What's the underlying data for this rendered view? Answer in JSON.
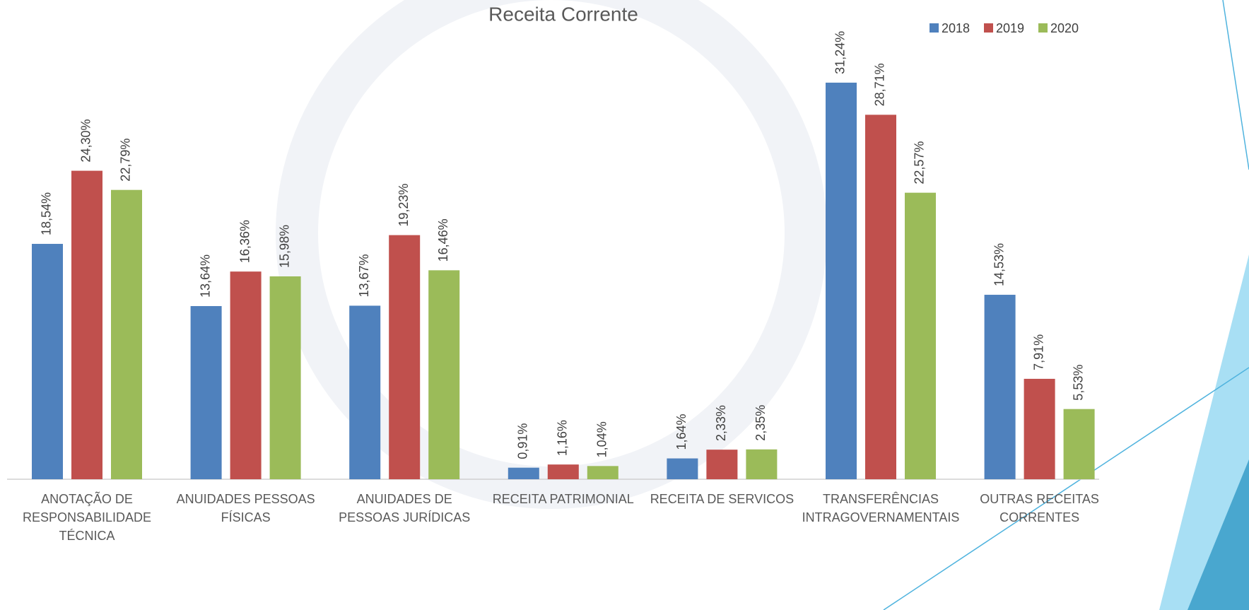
{
  "chart_data": {
    "type": "bar",
    "title": "Receita Corrente",
    "categories": [
      "ANOTAÇÃO DE RESPONSABILIDADE TÉCNICA",
      "ANUIDADES PESSOAS FÍSICAS",
      "ANUIDADES DE PESSOAS JURÍDICAS",
      "RECEITA PATRIMONIAL",
      "RECEITA DE SERVICOS",
      "TRANSFERÊNCIAS INTRAGOVERNAMENTAIS",
      "OUTRAS RECEITAS CORRENTES"
    ],
    "series": [
      {
        "name": "2018",
        "color": "#4f81bd",
        "values": [
          18.54,
          13.64,
          13.67,
          0.91,
          1.64,
          31.24,
          14.53
        ],
        "value_labels": [
          "18,54%",
          "13,64%",
          "13,67%",
          "0,91%",
          "1,64%",
          "31,24%",
          "14,53%"
        ]
      },
      {
        "name": "2019",
        "color": "#c0504d",
        "values": [
          24.3,
          16.36,
          19.23,
          1.16,
          2.33,
          28.71,
          7.91
        ],
        "value_labels": [
          "24,30%",
          "16,36%",
          "19,23%",
          "1,16%",
          "2,33%",
          "28,71%",
          "7,91%"
        ]
      },
      {
        "name": "2020",
        "color": "#9bbb59",
        "values": [
          22.79,
          15.98,
          16.46,
          1.04,
          2.35,
          22.57,
          5.53
        ],
        "value_labels": [
          "22,79%",
          "15,98%",
          "16,46%",
          "1,04%",
          "2,35%",
          "22,57%",
          "5,53%"
        ]
      }
    ],
    "legend": "top-right"
  }
}
